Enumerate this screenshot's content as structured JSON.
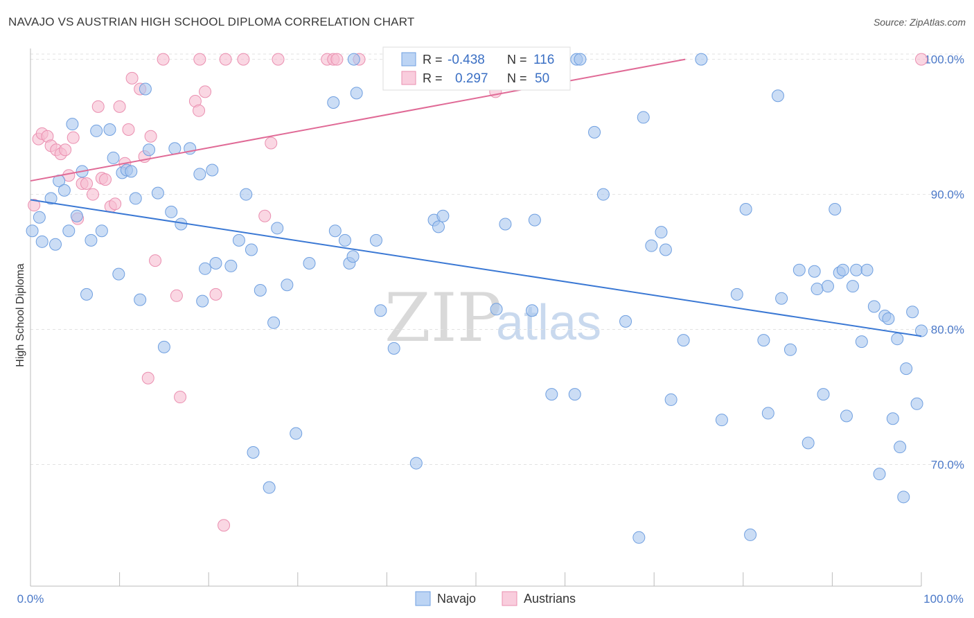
{
  "header": {
    "title": "NAVAJO VS AUSTRIAN HIGH SCHOOL DIPLOMA CORRELATION CHART",
    "source": "Source: ZipAtlas.com"
  },
  "colors": {
    "navajo_fill": "#a9c7ef",
    "navajo_stroke": "#6f9fe0",
    "navajo_line": "#3a78d4",
    "austrian_fill": "#f6bcd0",
    "austrian_stroke": "#ea8fb0",
    "austrian_line": "#e06a96",
    "tick_text": "#4a78c8"
  },
  "legend": {
    "rows": [
      {
        "r_label": "R =",
        "r_value": "-0.438",
        "n_label": "N =",
        "n_value": "116"
      },
      {
        "r_label": "R =",
        "r_value": "0.297",
        "n_label": "N =",
        "n_value": "50"
      }
    ]
  },
  "bottom_legend": {
    "navajo": "Navajo",
    "austrians": "Austrians"
  },
  "watermark": {
    "zip": "ZIP",
    "atlas": "atlas"
  },
  "chart_data": {
    "type": "scatter",
    "title": "NAVAJO VS AUSTRIAN HIGH SCHOOL DIPLOMA CORRELATION CHART",
    "xlabel": "",
    "ylabel": "High School Diploma",
    "xlim": [
      0,
      100
    ],
    "ylim": [
      61,
      100.8
    ],
    "x_tick_labels": [
      "0.0%",
      "100.0%"
    ],
    "y_ticks": [
      70,
      80,
      90,
      100
    ],
    "y_tick_labels": [
      "70.0%",
      "80.0%",
      "90.0%",
      "100.0%"
    ],
    "grid": true,
    "legend_position": "top-center",
    "series": [
      {
        "name": "Navajo",
        "r": -0.438,
        "n": 116,
        "trend": {
          "x": [
            0,
            100
          ],
          "y": [
            89.6,
            79.5
          ]
        },
        "points": [
          [
            0.2,
            87.3
          ],
          [
            1,
            88.3
          ],
          [
            1.3,
            86.5
          ],
          [
            2.3,
            89.7
          ],
          [
            2.8,
            86.3
          ],
          [
            3.2,
            91.0
          ],
          [
            3.8,
            90.3
          ],
          [
            4.3,
            87.3
          ],
          [
            4.7,
            95.2
          ],
          [
            5.2,
            88.4
          ],
          [
            5.8,
            91.7
          ],
          [
            6.3,
            82.6
          ],
          [
            6.8,
            86.6
          ],
          [
            7.4,
            94.7
          ],
          [
            8.0,
            87.3
          ],
          [
            8.9,
            94.8
          ],
          [
            9.3,
            92.7
          ],
          [
            9.9,
            84.1
          ],
          [
            10.3,
            91.6
          ],
          [
            10.8,
            91.8
          ],
          [
            11.3,
            91.7
          ],
          [
            11.8,
            89.7
          ],
          [
            12.3,
            82.2
          ],
          [
            12.9,
            97.8
          ],
          [
            13.3,
            93.3
          ],
          [
            14.3,
            90.1
          ],
          [
            15.0,
            78.7
          ],
          [
            15.8,
            88.7
          ],
          [
            16.2,
            93.4
          ],
          [
            16.9,
            87.8
          ],
          [
            17.9,
            93.4
          ],
          [
            19.0,
            91.5
          ],
          [
            19.3,
            82.1
          ],
          [
            19.6,
            84.5
          ],
          [
            20.4,
            91.8
          ],
          [
            20.8,
            84.9
          ],
          [
            22.5,
            84.7
          ],
          [
            23.4,
            86.6
          ],
          [
            24.2,
            90.0
          ],
          [
            24.8,
            85.9
          ],
          [
            25.0,
            70.9
          ],
          [
            25.8,
            82.9
          ],
          [
            26.8,
            68.3
          ],
          [
            27.3,
            80.5
          ],
          [
            27.7,
            87.5
          ],
          [
            28.8,
            83.3
          ],
          [
            29.8,
            72.3
          ],
          [
            31.3,
            84.9
          ],
          [
            34.0,
            96.8
          ],
          [
            34.2,
            87.3
          ],
          [
            35.3,
            86.6
          ],
          [
            35.8,
            84.9
          ],
          [
            36.2,
            85.4
          ],
          [
            36.6,
            97.5
          ],
          [
            38.8,
            86.6
          ],
          [
            39.3,
            81.4
          ],
          [
            40.8,
            78.6
          ],
          [
            43.3,
            70.1
          ],
          [
            45.3,
            88.1
          ],
          [
            45.8,
            87.6
          ],
          [
            46.3,
            88.4
          ],
          [
            52.3,
            81.5
          ],
          [
            53.3,
            87.8
          ],
          [
            56.3,
            81.4
          ],
          [
            56.6,
            88.1
          ],
          [
            61.3,
            100
          ],
          [
            61.7,
            100
          ],
          [
            61.1,
            75.2
          ],
          [
            63.3,
            94.6
          ],
          [
            64.3,
            90.0
          ],
          [
            66.8,
            80.6
          ],
          [
            68.3,
            64.6
          ],
          [
            68.8,
            95.7
          ],
          [
            69.7,
            86.2
          ],
          [
            70.8,
            87.2
          ],
          [
            71.3,
            85.9
          ],
          [
            71.9,
            74.8
          ],
          [
            73.3,
            79.2
          ],
          [
            75.3,
            100
          ],
          [
            77.6,
            73.3
          ],
          [
            79.3,
            82.6
          ],
          [
            80.3,
            88.9
          ],
          [
            80.8,
            64.8
          ],
          [
            82.3,
            79.2
          ],
          [
            82.8,
            73.8
          ],
          [
            84.3,
            82.3
          ],
          [
            85.3,
            78.5
          ],
          [
            86.3,
            84.4
          ],
          [
            87.3,
            71.6
          ],
          [
            88.0,
            84.3
          ],
          [
            88.3,
            83.0
          ],
          [
            89.0,
            75.2
          ],
          [
            89.5,
            83.2
          ],
          [
            90.3,
            88.9
          ],
          [
            90.8,
            84.2
          ],
          [
            91.2,
            84.4
          ],
          [
            91.6,
            73.6
          ],
          [
            92.3,
            83.2
          ],
          [
            92.7,
            84.4
          ],
          [
            93.3,
            79.1
          ],
          [
            93.9,
            84.4
          ],
          [
            94.7,
            81.7
          ],
          [
            95.3,
            69.3
          ],
          [
            95.9,
            81.0
          ],
          [
            96.3,
            80.8
          ],
          [
            96.8,
            73.4
          ],
          [
            97.3,
            79.3
          ],
          [
            97.6,
            71.3
          ],
          [
            98.0,
            67.6
          ],
          [
            98.3,
            77.1
          ],
          [
            99.0,
            81.3
          ],
          [
            99.5,
            74.5
          ],
          [
            100,
            79.9
          ],
          [
            58.5,
            75.2
          ],
          [
            83.9,
            97.3
          ],
          [
            36.3,
            100
          ]
        ]
      },
      {
        "name": "Austrians",
        "r": 0.297,
        "n": 50,
        "trend": {
          "x": [
            0,
            73.5
          ],
          "y": [
            91.0,
            100
          ]
        },
        "points": [
          [
            0.4,
            89.2
          ],
          [
            0.9,
            94.1
          ],
          [
            1.3,
            94.5
          ],
          [
            1.9,
            94.3
          ],
          [
            2.3,
            93.6
          ],
          [
            2.9,
            93.3
          ],
          [
            3.4,
            93.0
          ],
          [
            3.9,
            93.3
          ],
          [
            4.3,
            91.4
          ],
          [
            4.8,
            94.2
          ],
          [
            5.3,
            88.2
          ],
          [
            5.8,
            90.8
          ],
          [
            6.3,
            90.8
          ],
          [
            7.0,
            90.0
          ],
          [
            7.6,
            96.5
          ],
          [
            8.0,
            91.2
          ],
          [
            8.4,
            91.1
          ],
          [
            9.0,
            89.1
          ],
          [
            9.5,
            89.3
          ],
          [
            10.0,
            96.5
          ],
          [
            10.6,
            92.3
          ],
          [
            11.0,
            94.8
          ],
          [
            11.4,
            98.6
          ],
          [
            12.3,
            97.8
          ],
          [
            12.8,
            92.8
          ],
          [
            13.5,
            94.3
          ],
          [
            13.2,
            76.4
          ],
          [
            14.0,
            85.1
          ],
          [
            14.9,
            100
          ],
          [
            16.4,
            82.5
          ],
          [
            16.8,
            75.0
          ],
          [
            18.5,
            96.9
          ],
          [
            18.9,
            96.2
          ],
          [
            19.0,
            100
          ],
          [
            19.6,
            97.6
          ],
          [
            20.8,
            82.6
          ],
          [
            21.7,
            65.5
          ],
          [
            21.9,
            100
          ],
          [
            23.9,
            100
          ],
          [
            26.3,
            88.4
          ],
          [
            27.0,
            93.8
          ],
          [
            27.8,
            100
          ],
          [
            33.3,
            100
          ],
          [
            34.0,
            100
          ],
          [
            34.4,
            100
          ],
          [
            36.9,
            100
          ],
          [
            41.0,
            100
          ],
          [
            46.8,
            100
          ],
          [
            52.2,
            97.6
          ],
          [
            100,
            100
          ]
        ]
      }
    ]
  }
}
